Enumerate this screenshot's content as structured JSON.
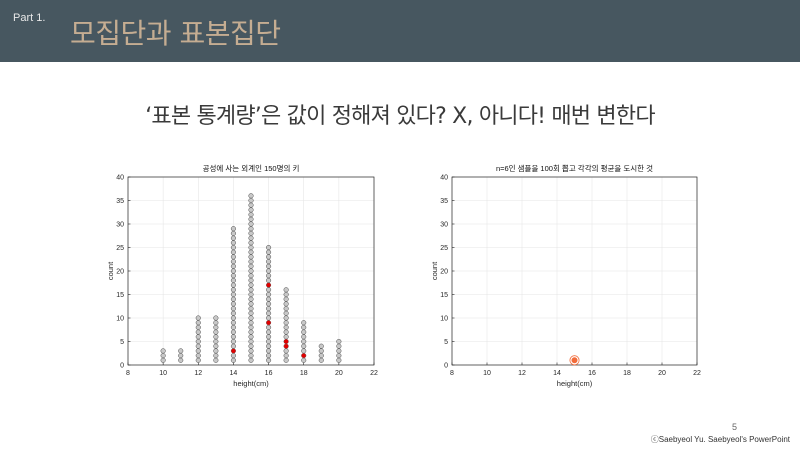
{
  "header": {
    "part_label": "Part 1.",
    "title": "모집단과 표본집단"
  },
  "slide": {
    "title": "‘표본 통계량’은 값이 정해져 있다? X, 아니다! 매번 변한다",
    "page_number": "5",
    "copyright": "ⓒSaebyeol Yu. Saebyeol's PowerPoint"
  },
  "colors": {
    "header_bg": "#475760",
    "header_title": "#c5ad92",
    "dot_fill": "#c8c8c8",
    "highlight": "#e00000",
    "mean_marker": "#f26b3a"
  },
  "chart_data": [
    {
      "type": "scatter",
      "title": "공성에 사는 외계인 150명의 키",
      "xlabel": "height(cm)",
      "ylabel": "count",
      "xlim": [
        8,
        22
      ],
      "ylim": [
        0,
        40
      ],
      "xticks": [
        8,
        10,
        12,
        14,
        16,
        18,
        20,
        22
      ],
      "yticks": [
        0,
        5,
        10,
        15,
        20,
        25,
        30,
        35,
        40
      ],
      "grid": true,
      "columns": [
        {
          "x": 10,
          "count": 3
        },
        {
          "x": 11,
          "count": 3
        },
        {
          "x": 12,
          "count": 10
        },
        {
          "x": 13,
          "count": 10
        },
        {
          "x": 14,
          "count": 29
        },
        {
          "x": 15,
          "count": 36
        },
        {
          "x": 16,
          "count": 25
        },
        {
          "x": 17,
          "count": 16
        },
        {
          "x": 18,
          "count": 9
        },
        {
          "x": 19,
          "count": 4
        },
        {
          "x": 20,
          "count": 5
        }
      ],
      "highlighted": [
        {
          "x": 14,
          "y": 3
        },
        {
          "x": 16,
          "y": 17
        },
        {
          "x": 16,
          "y": 9
        },
        {
          "x": 17,
          "y": 5
        },
        {
          "x": 17,
          "y": 4
        },
        {
          "x": 18,
          "y": 2
        }
      ]
    },
    {
      "type": "scatter",
      "title": "n=6인 샘플을 100회 뽑고 각각의 평균을 도시한 것",
      "xlabel": "height(cm)",
      "ylabel": "count",
      "xlim": [
        8,
        22
      ],
      "ylim": [
        0,
        40
      ],
      "xticks": [
        8,
        10,
        12,
        14,
        16,
        18,
        20,
        22
      ],
      "yticks": [
        0,
        5,
        10,
        15,
        20,
        25,
        30,
        35,
        40
      ],
      "grid": true,
      "points": [
        {
          "x": 15,
          "y": 1
        }
      ]
    }
  ]
}
